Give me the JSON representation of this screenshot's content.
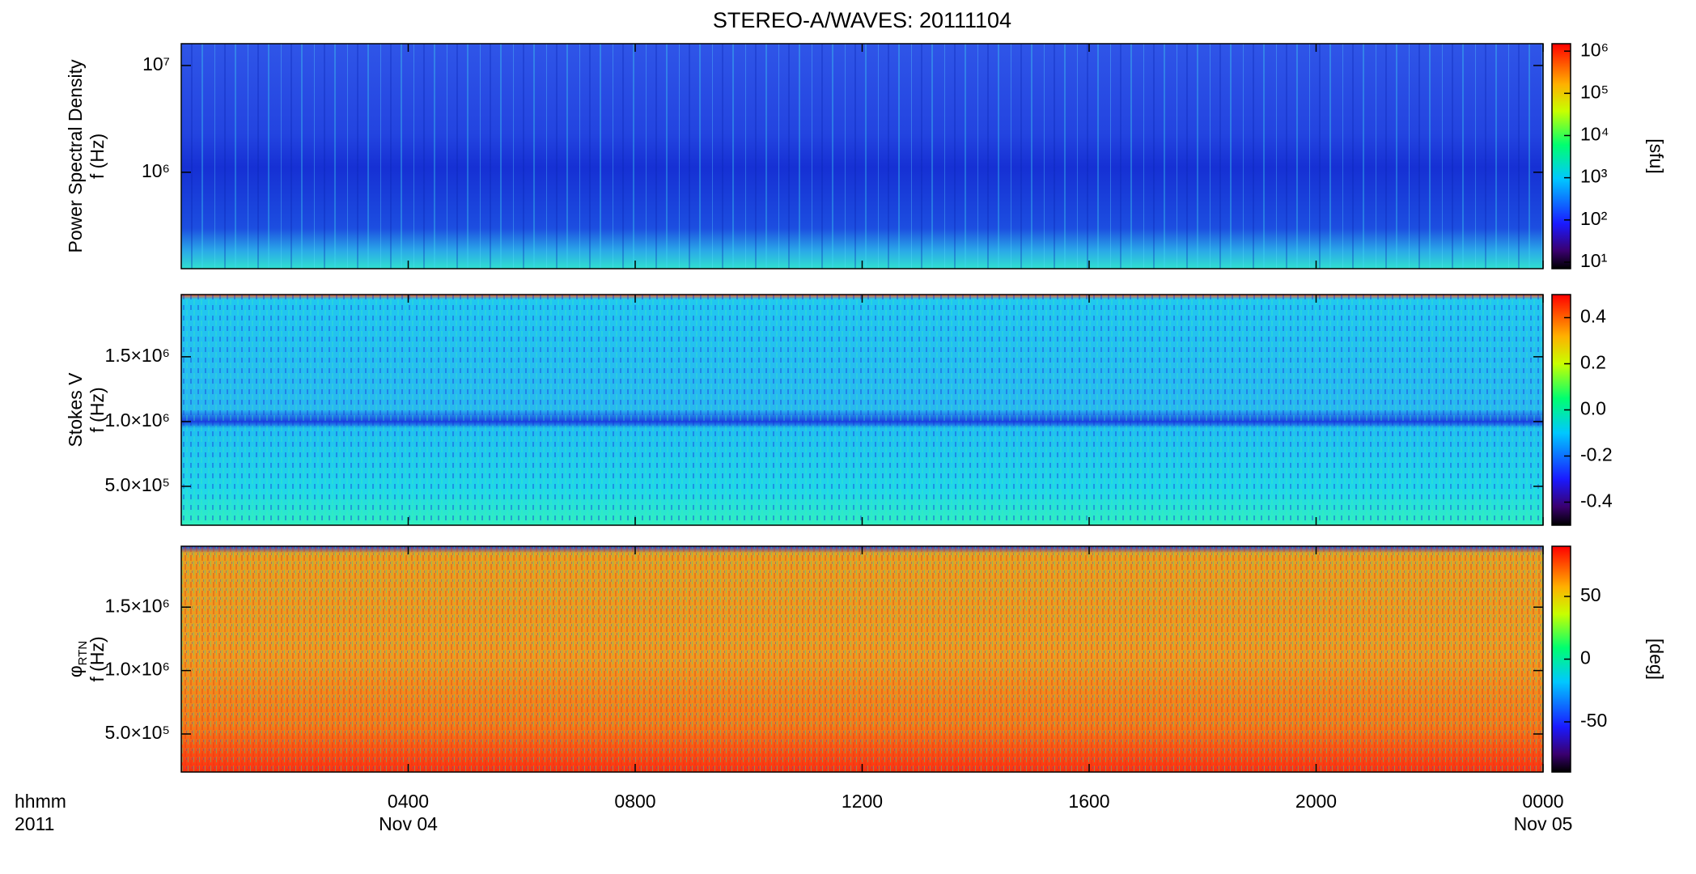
{
  "chart_data": [
    {
      "type": "spectrogram",
      "title": "STEREO-A/WAVES: 20111104",
      "ylabel": "Power Spectral Density",
      "ylabel2": "f (Hz)",
      "log": true,
      "ylim": [
        125000,
        16000000
      ],
      "yticks": [
        {
          "value": 1000000,
          "label": "10⁶"
        },
        {
          "value": 10000000,
          "label": "10⁷"
        }
      ],
      "colorbar": {
        "log": true,
        "zlim": [
          7,
          1500000
        ],
        "label": "[sfu]",
        "zticks": [
          {
            "value": 10,
            "label": "10¹"
          },
          {
            "value": 100,
            "label": "10²"
          },
          {
            "value": 1000,
            "label": "10³"
          },
          {
            "value": 10000,
            "label": "10⁴"
          },
          {
            "value": 100000,
            "label": "10⁵"
          },
          {
            "value": 1000000,
            "label": "10⁶"
          }
        ]
      }
    },
    {
      "type": "spectrogram",
      "ylabel": "Stokes V",
      "ylabel2": "f (Hz)",
      "log": false,
      "ylim": [
        200000,
        1980000
      ],
      "yticks": [
        {
          "value": 500000,
          "label": "5.0×10⁵"
        },
        {
          "value": 1000000,
          "label": "1.0×10⁶"
        },
        {
          "value": 1500000,
          "label": "1.5×10⁶"
        }
      ],
      "colorbar": {
        "log": false,
        "zlim": [
          -0.5,
          0.5
        ],
        "zticks": [
          -0.4,
          -0.2,
          {
            "value": 0,
            "label": "0.0"
          },
          0.2,
          0.4
        ]
      }
    },
    {
      "type": "spectrogram",
      "ylabel": "φ",
      "ylabel_sub": "RTN",
      "ylabel2": "f (Hz)",
      "log": false,
      "ylim": [
        200000,
        1980000
      ],
      "yticks": [
        {
          "value": 500000,
          "label": "5.0×10⁵"
        },
        {
          "value": 1000000,
          "label": "1.0×10⁶"
        },
        {
          "value": 1500000,
          "label": "1.5×10⁶"
        }
      ],
      "colorbar": {
        "log": false,
        "zlim": [
          -90,
          90
        ],
        "label": "[deg]",
        "zticks": [
          -50,
          0,
          50
        ]
      },
      "xlim": [
        0,
        24
      ],
      "xticks": [
        {
          "value": 4,
          "label": "0400"
        },
        {
          "value": 8,
          "label": "0800"
        },
        {
          "value": 12,
          "label": "1200"
        },
        {
          "value": 16,
          "label": "1600"
        },
        {
          "value": 20,
          "label": "2000"
        },
        {
          "value": 24,
          "label": "0000"
        }
      ],
      "xdates": [
        {
          "value": 4,
          "label": "Nov 04"
        },
        {
          "value": 24,
          "label": "Nov 05"
        }
      ],
      "xheader": [
        "hhmm",
        "2011"
      ]
    }
  ]
}
